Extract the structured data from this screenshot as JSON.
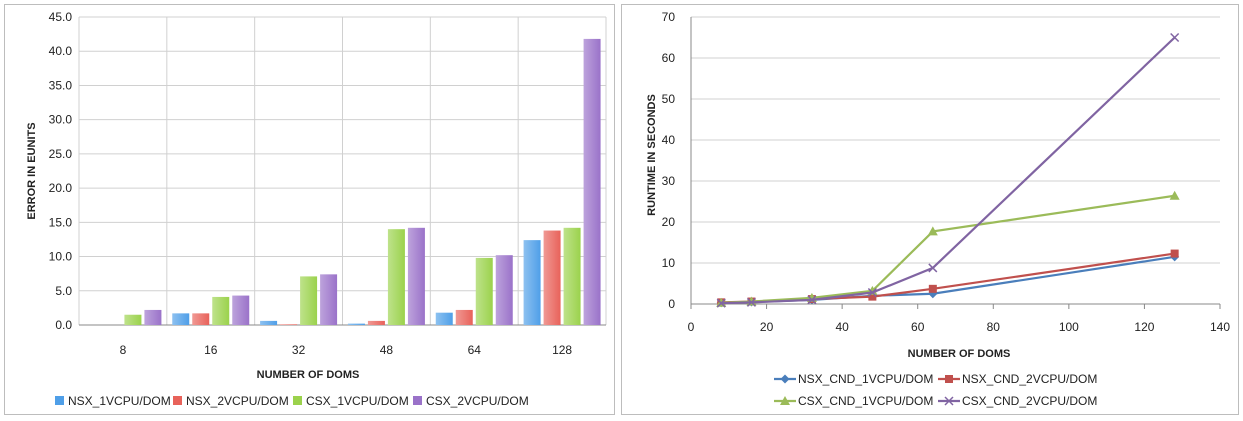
{
  "chart_data": [
    {
      "type": "bar",
      "title": "",
      "xlabel": "NUMBER OF DOMS",
      "ylabel": "ERROR IN EUNITS",
      "categories": [
        "8",
        "16",
        "32",
        "48",
        "64",
        "128"
      ],
      "ylim": [
        0,
        45
      ],
      "ytick_labels": [
        "0.0",
        "5.0",
        "10.0",
        "15.0",
        "20.0",
        "25.0",
        "30.0",
        "35.0",
        "40.0",
        "45.0"
      ],
      "grid": "vertical and horizontal",
      "legend_position": "bottom",
      "series": [
        {
          "name": "NSX_1VCPU/DOM",
          "color": "#4f9fe8",
          "values": [
            0.0,
            1.7,
            0.6,
            0.2,
            1.8,
            12.4
          ]
        },
        {
          "name": "NSX_2VCPU/DOM",
          "color": "#e8625a",
          "values": [
            0.0,
            1.7,
            0.1,
            0.6,
            2.2,
            13.8
          ]
        },
        {
          "name": "CSX_1VCPU/DOM",
          "color": "#9bd24c",
          "values": [
            1.5,
            4.1,
            7.1,
            14.0,
            9.8,
            14.2
          ]
        },
        {
          "name": "CSX_2VCPU/DOM",
          "color": "#9a72c9",
          "values": [
            2.2,
            4.3,
            7.4,
            14.2,
            10.2,
            41.8
          ]
        }
      ]
    },
    {
      "type": "line",
      "title": "",
      "xlabel": "NUMBER OF DOMS",
      "ylabel": "RUNTIME IN SECONDS",
      "xlim": [
        0,
        140
      ],
      "ylim": [
        0,
        70
      ],
      "xtick_labels": [
        "0",
        "20",
        "40",
        "60",
        "80",
        "100",
        "120",
        "140"
      ],
      "ytick_labels": [
        "0",
        "10",
        "20",
        "30",
        "40",
        "50",
        "60",
        "70"
      ],
      "grid": "horizontal",
      "legend_position": "bottom",
      "x": [
        8,
        16,
        32,
        48,
        64,
        128
      ],
      "series": [
        {
          "name": "NSX_CND_1VCPU/DOM",
          "color": "#4a7ebb",
          "marker": "diamond",
          "values": [
            0.3,
            0.5,
            1.0,
            2.0,
            2.5,
            11.5
          ]
        },
        {
          "name": "NSX_CND_2VCPU/DOM",
          "color": "#c0504d",
          "marker": "square",
          "values": [
            0.4,
            0.6,
            1.2,
            1.8,
            3.7,
            12.3
          ]
        },
        {
          "name": "CSX_CND_1VCPU/DOM",
          "color": "#9bbb59",
          "marker": "triangle",
          "values": [
            0.3,
            0.6,
            1.5,
            3.2,
            17.7,
            26.4
          ]
        },
        {
          "name": "CSX_CND_2VCPU/DOM",
          "color": "#8064a2",
          "marker": "x",
          "values": [
            0.2,
            0.4,
            1.0,
            2.8,
            8.8,
            65.0
          ]
        }
      ]
    }
  ]
}
